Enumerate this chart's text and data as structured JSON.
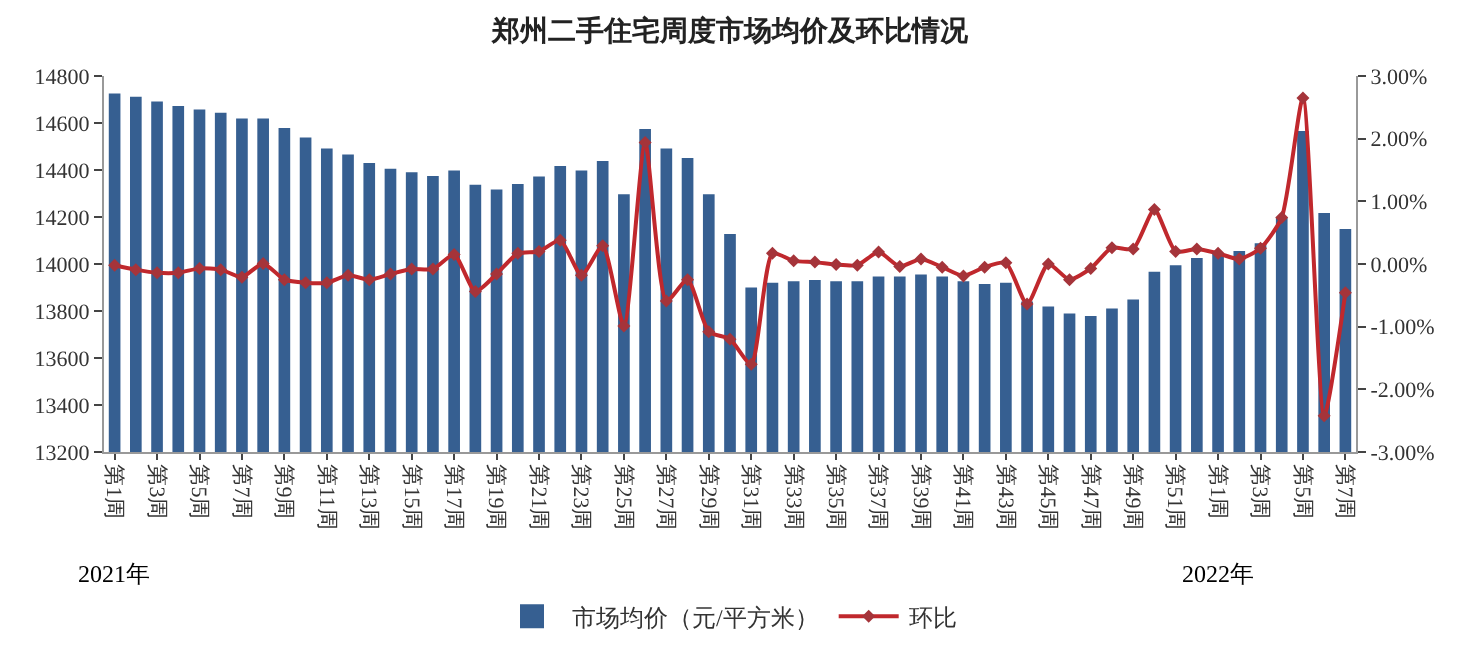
{
  "chart_data": {
    "type": "bar",
    "title": "郑州二手住宅周度市场均价及环比情况",
    "categories": [
      "第1周",
      null,
      "第3周",
      null,
      "第5周",
      null,
      "第7周",
      null,
      "第9周",
      null,
      "第11周",
      null,
      "第13周",
      null,
      "第15周",
      null,
      "第17周",
      null,
      "第19周",
      null,
      "第21周",
      null,
      "第23周",
      null,
      "第25周",
      null,
      "第27周",
      null,
      "第29周",
      null,
      "第31周",
      null,
      "第33周",
      null,
      "第35周",
      null,
      "第37周",
      null,
      "第39周",
      null,
      "第41周",
      null,
      "第43周",
      null,
      "第45周",
      null,
      "第47周",
      null,
      "第49周",
      null,
      "第51周",
      null,
      "第1周",
      null,
      "第3周",
      null,
      "第5周",
      null,
      "第7周"
    ],
    "series": [
      {
        "name": "市场均价（元/平方米）",
        "color": "#365f91",
        "values": [
          14725,
          14712,
          14692,
          14672,
          14657,
          14644,
          14619,
          14619,
          14579,
          14538,
          14491,
          14466,
          14430,
          14405,
          14390,
          14375,
          14398,
          14337,
          14317,
          14340,
          14372,
          14417,
          14398,
          14438,
          14297,
          14574,
          14491,
          14451,
          14297,
          14128,
          13900,
          13920,
          13927,
          13932,
          13927,
          13927,
          13947,
          13947,
          13955,
          13947,
          13927,
          13915,
          13920,
          13840,
          13819,
          13789,
          13779,
          13811,
          13849,
          13967,
          13995,
          14025,
          14045,
          14055,
          14088,
          14196,
          14566,
          14217,
          14149
        ]
      },
      {
        "name": "环比",
        "type": "line",
        "axis": "y2",
        "color": "#c0282d",
        "values": [
          -0.02,
          -0.09,
          -0.14,
          -0.14,
          -0.07,
          -0.09,
          -0.21,
          0.01,
          -0.25,
          -0.3,
          -0.3,
          -0.18,
          -0.25,
          -0.16,
          -0.08,
          -0.08,
          0.15,
          -0.44,
          -0.16,
          0.17,
          0.2,
          0.38,
          -0.18,
          0.29,
          -0.99,
          1.94,
          -0.59,
          -0.25,
          -1.08,
          -1.2,
          -1.6,
          0.17,
          0.05,
          0.03,
          -0.01,
          -0.02,
          0.19,
          -0.04,
          0.08,
          -0.05,
          -0.19,
          -0.05,
          0.02,
          -0.64,
          0.0,
          -0.25,
          -0.07,
          0.26,
          0.24,
          0.87,
          0.2,
          0.24,
          0.17,
          0.08,
          0.25,
          0.74,
          2.65,
          -2.42,
          -0.46
        ]
      }
    ],
    "ylim": [
      13200,
      14800
    ],
    "yticks": [
      13200,
      13400,
      13600,
      13800,
      14000,
      14200,
      14400,
      14600,
      14800
    ],
    "y2lim": [
      -3,
      3
    ],
    "y2ticks": [
      {
        "value": -3,
        "label": "-3.00%"
      },
      {
        "value": -2,
        "label": "-2.00%"
      },
      {
        "value": -1,
        "label": "-1.00%"
      },
      {
        "value": 0,
        "label": "0.00%"
      },
      {
        "value": 1,
        "label": "1.00%"
      },
      {
        "value": 2,
        "label": "2.00%"
      },
      {
        "value": 3,
        "label": "3.00%"
      }
    ],
    "annotations": [
      "2021年",
      "2022年"
    ],
    "marker": "diamond",
    "legend": "bottom",
    "grid": false
  }
}
